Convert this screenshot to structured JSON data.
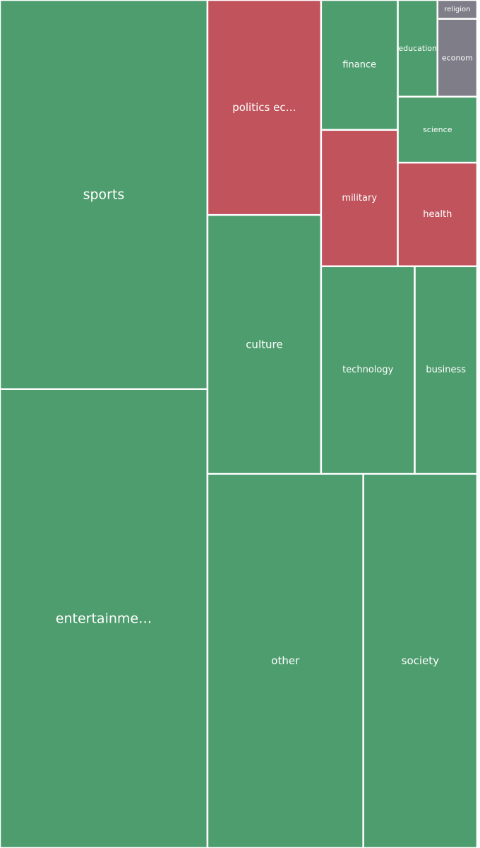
{
  "colors": {
    "positive": "#4e9d6e",
    "negative": "#c0535b",
    "neutral": "#7e7d88",
    "border": "#ffffff",
    "label": "#ffffff"
  },
  "chart_data": {
    "type": "treemap",
    "title": "",
    "items": [
      {
        "label": "sports",
        "value": 162,
        "sentiment": "positive"
      },
      {
        "label": "entertainme…",
        "value": 191,
        "sentiment": "positive"
      },
      {
        "label": "politics ec…",
        "value": 49,
        "sentiment": "negative"
      },
      {
        "label": "culture",
        "value": 59,
        "sentiment": "positive"
      },
      {
        "label": "finance",
        "value": 20,
        "sentiment": "positive"
      },
      {
        "label": "education",
        "value": 7.7,
        "sentiment": "positive"
      },
      {
        "label": "religion",
        "value": 1.5,
        "sentiment": "neutral"
      },
      {
        "label": "econom",
        "value": 6.2,
        "sentiment": "neutral"
      },
      {
        "label": "science",
        "value": 10.5,
        "sentiment": "positive"
      },
      {
        "label": "military",
        "value": 21,
        "sentiment": "negative"
      },
      {
        "label": "health",
        "value": 16.5,
        "sentiment": "negative"
      },
      {
        "label": "technology",
        "value": 39,
        "sentiment": "positive"
      },
      {
        "label": "business",
        "value": 26,
        "sentiment": "positive"
      },
      {
        "label": "other",
        "value": 117,
        "sentiment": "positive"
      },
      {
        "label": "society",
        "value": 85.5,
        "sentiment": "positive"
      }
    ]
  }
}
